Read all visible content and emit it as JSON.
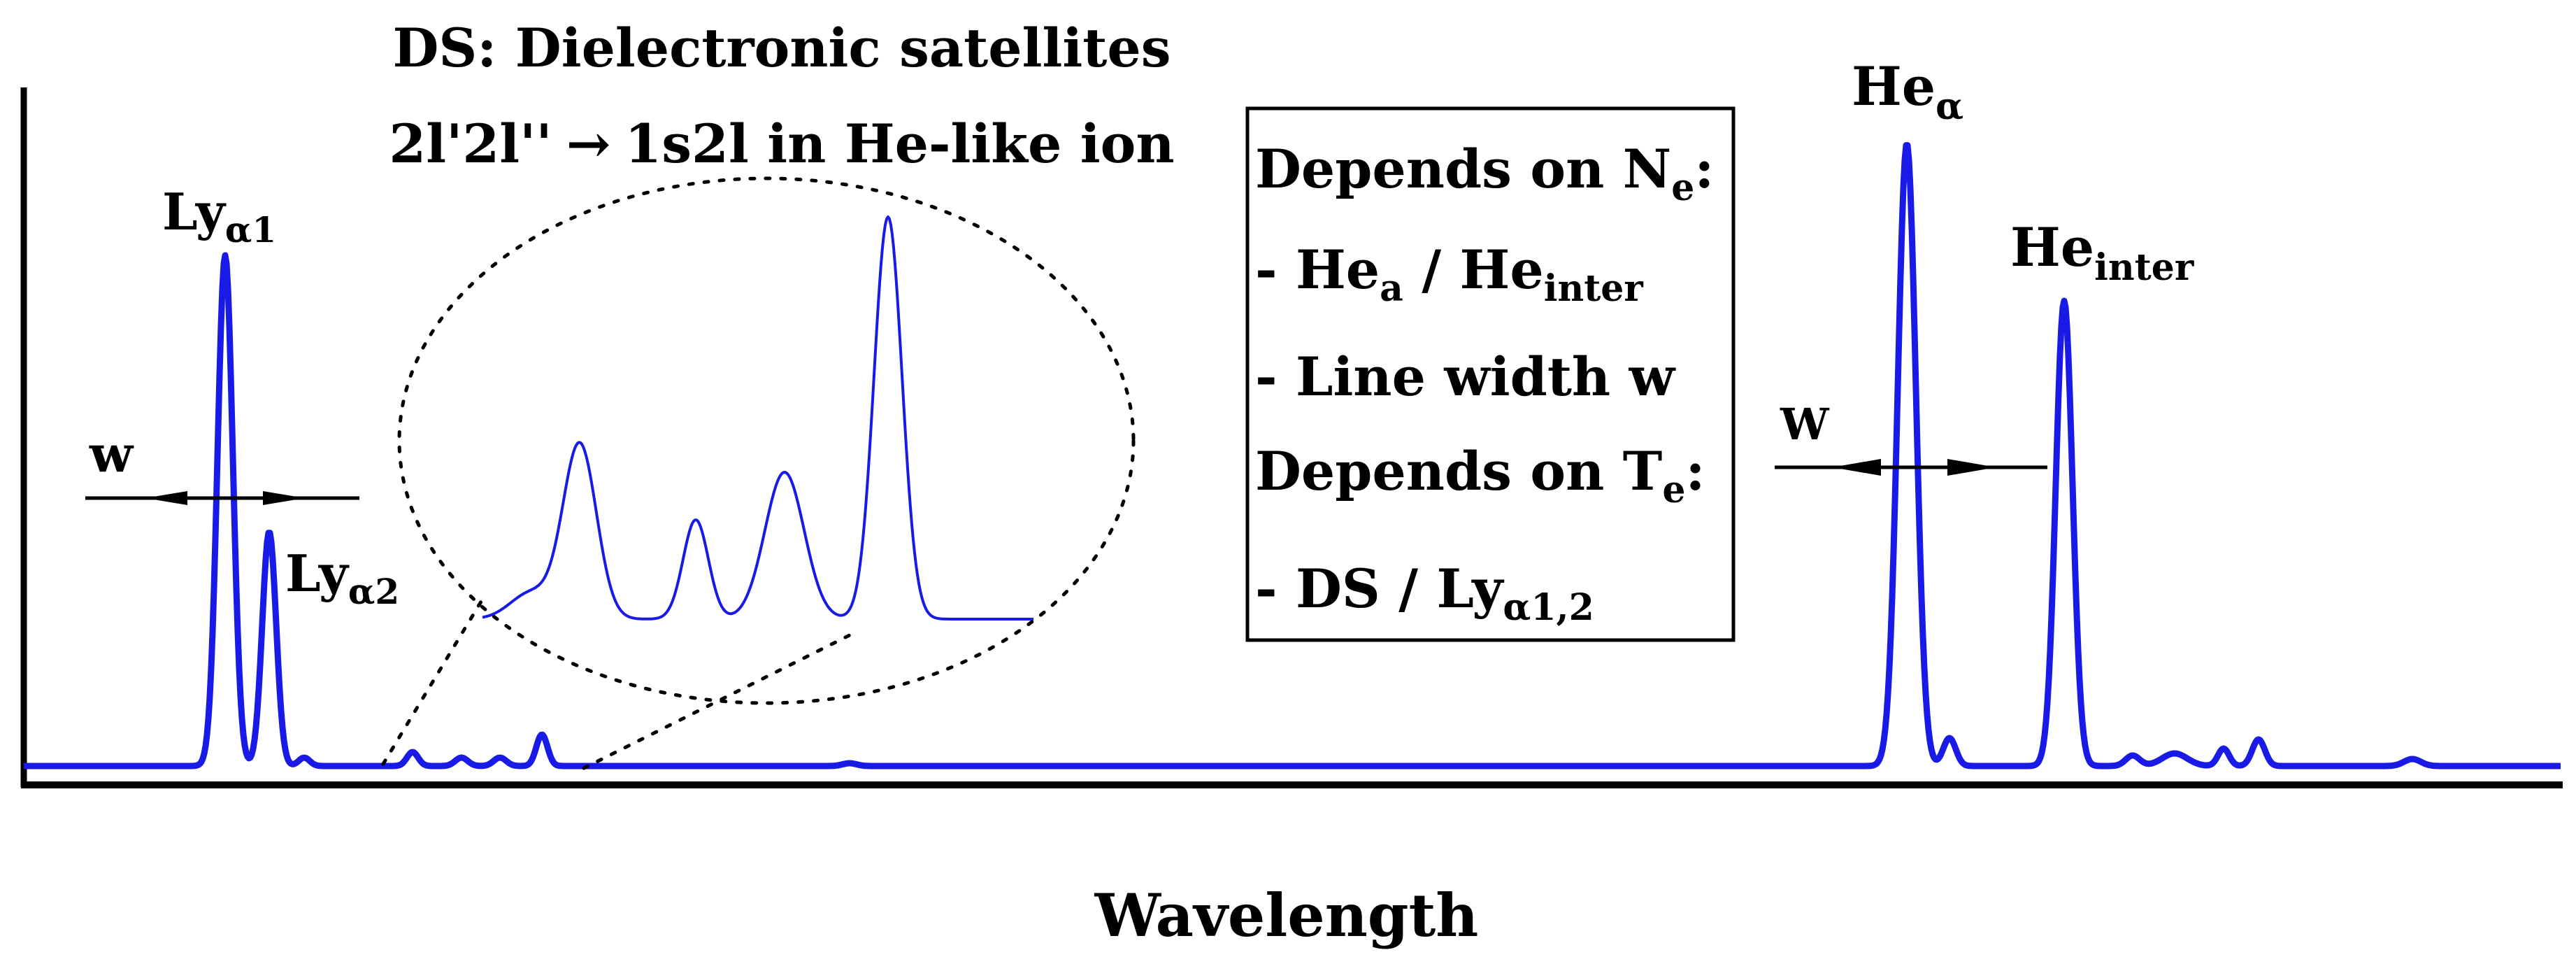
{
  "x_axis_label": "Wavelength",
  "ds_title": "DS: Dielectronic satellites",
  "ds_transition": {
    "left": "2l'2l''",
    "arrow": "→",
    "right": "1s2l in He-like ion"
  },
  "peak_labels": {
    "ly_a1": {
      "base": "Ly",
      "sub": "α1"
    },
    "ly_a2": {
      "base": "Ly",
      "sub": "α2"
    },
    "he_alpha": {
      "base": "He",
      "sub": "α"
    },
    "he_inter": {
      "base": "He",
      "sub": "inter"
    }
  },
  "width_marker_left": "w",
  "width_marker_right": "W",
  "info_box": {
    "line1": {
      "text": "Depends on N",
      "sub": "e",
      "tail": ":"
    },
    "line2": {
      "prefix": "- He",
      "sub1": "a",
      "mid": " / He",
      "sub2": "inter"
    },
    "line3": "- Line width w",
    "line4": {
      "text": "Depends on T",
      "sub": "e",
      "tail": ":"
    },
    "line5": {
      "prefix": "- DS / Ly",
      "sub": "α1,2"
    }
  },
  "colors": {
    "spectrum": "#1a1ae6",
    "axis": "#000000"
  }
}
